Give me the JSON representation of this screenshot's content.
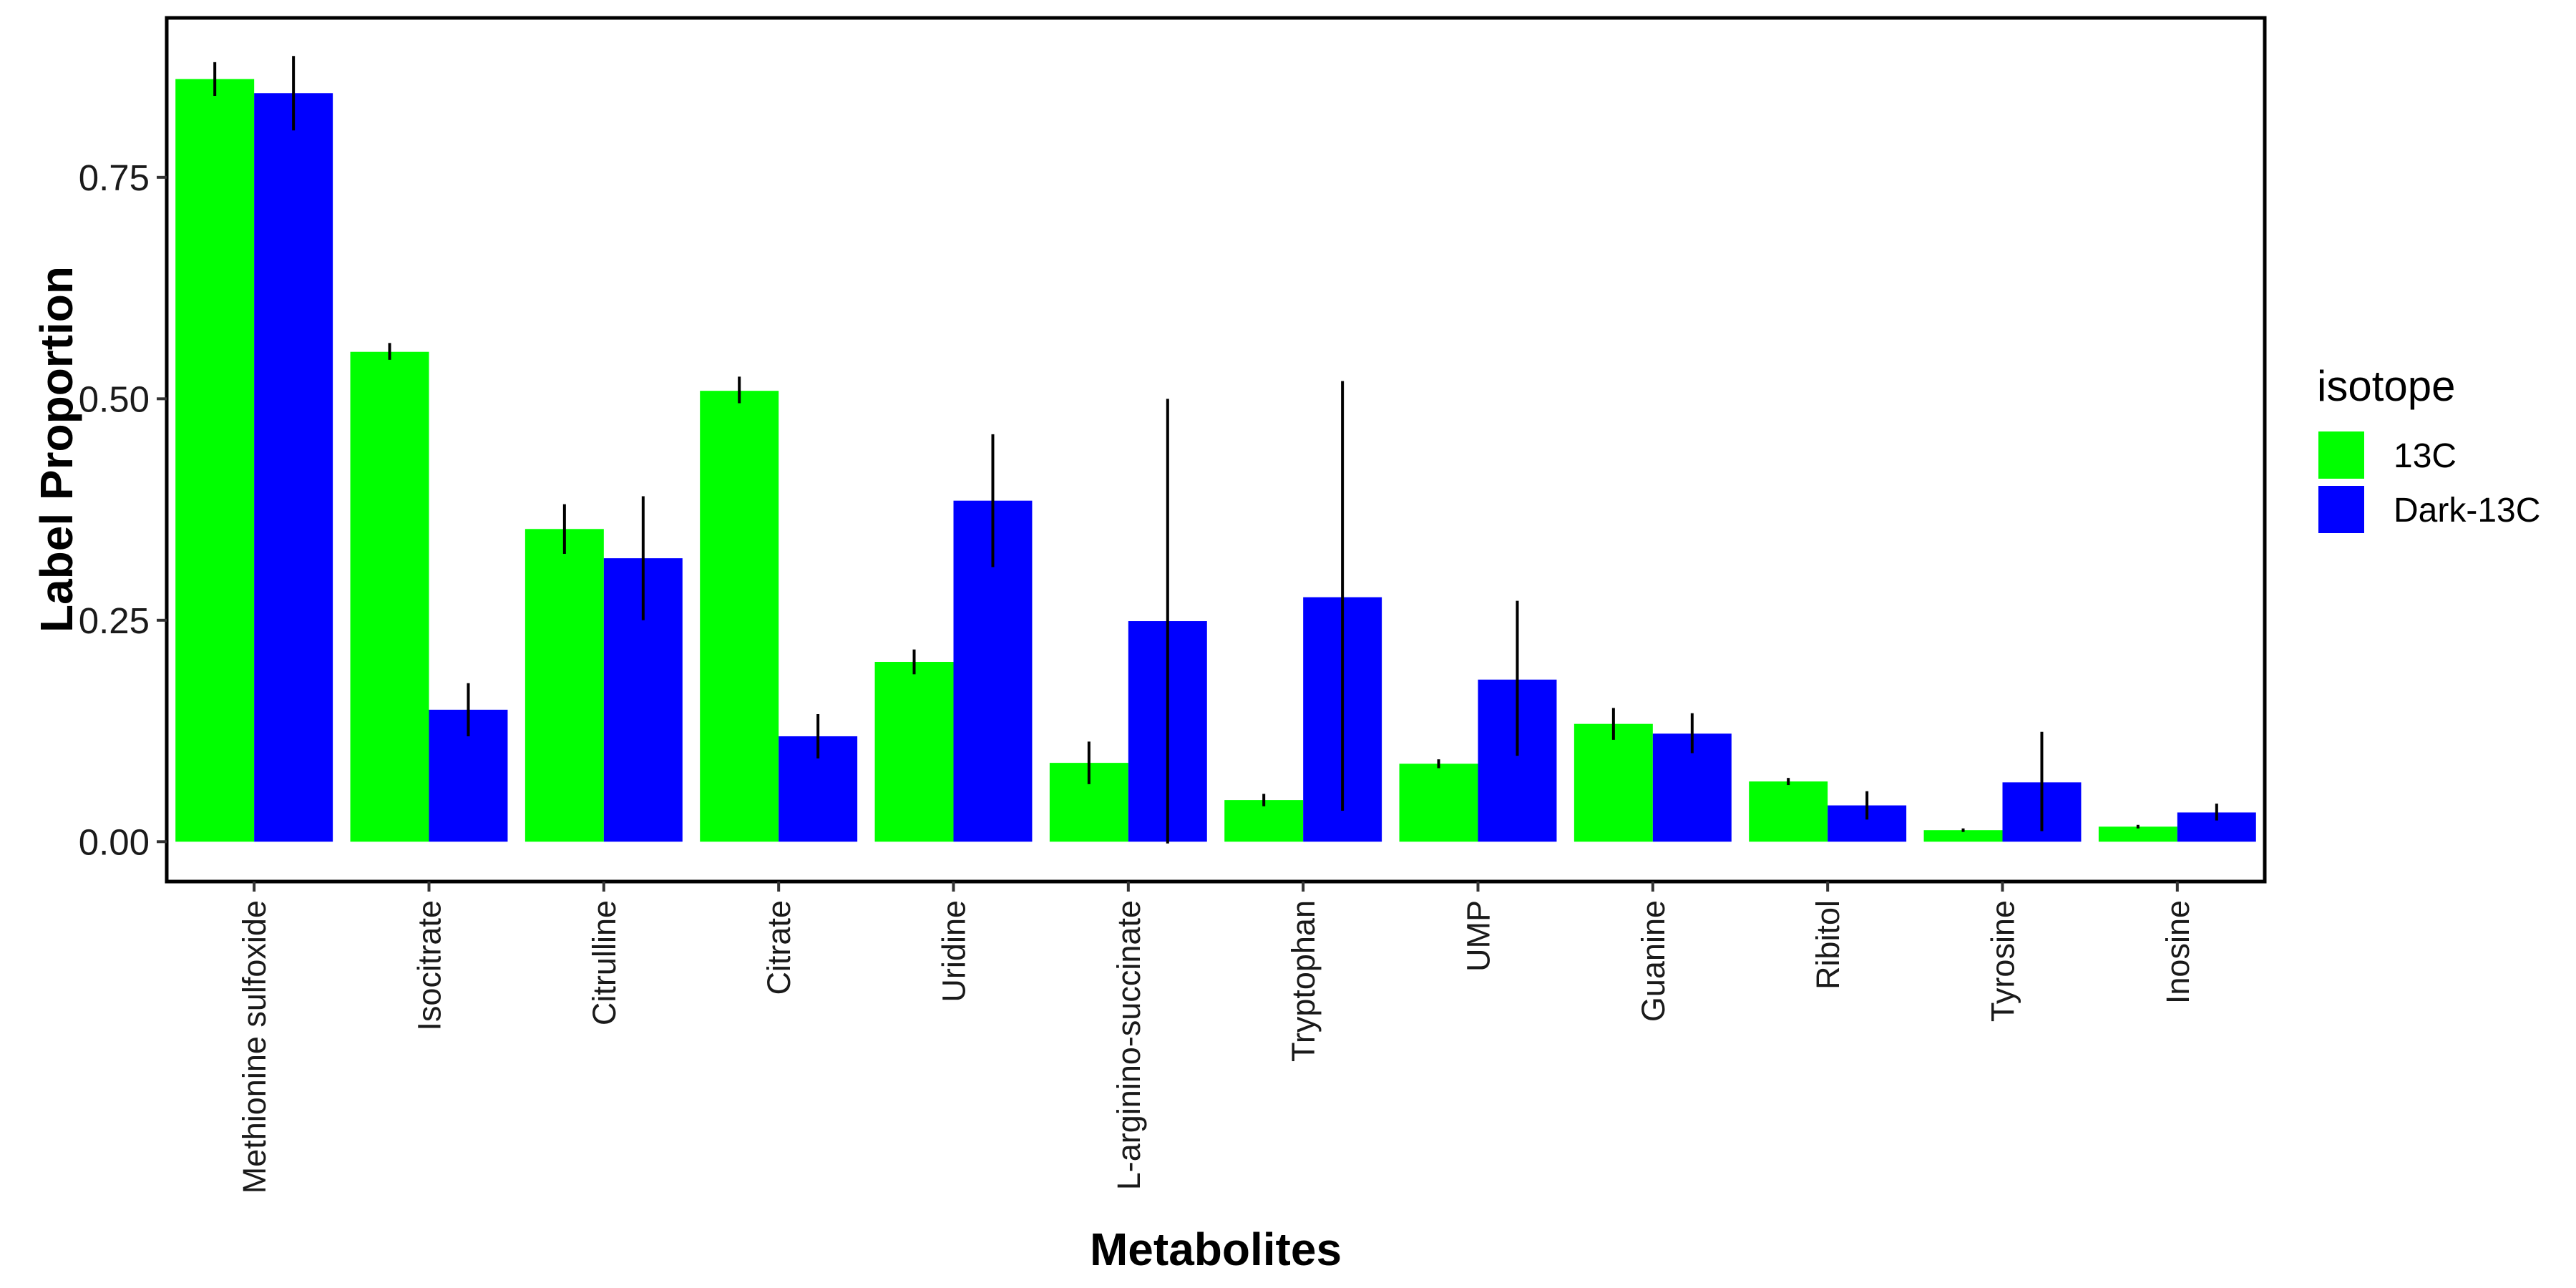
{
  "chart_data": {
    "type": "bar",
    "title": "",
    "xlabel": "Metabolites",
    "ylabel": "Label Proportion",
    "ylim": [
      -0.045,
      0.93
    ],
    "yticks": [
      0.0,
      0.25,
      0.5,
      0.75
    ],
    "ytick_labels": [
      "0.00",
      "0.25",
      "0.50",
      "0.75"
    ],
    "grid": false,
    "legend": {
      "title": "isotope",
      "position": "right"
    },
    "categories": [
      "Methionine sulfoxide",
      "Isocitrate",
      "Citrulline",
      "Citrate",
      "Uridine",
      "L-arginino-succinate",
      "Tryptophan",
      "UMP",
      "Guanine",
      "Ribitol",
      "Tyrosine",
      "Inosine"
    ],
    "series": [
      {
        "name": "13C",
        "color": "#00ff00",
        "values": [
          0.861,
          0.553,
          0.353,
          0.509,
          0.203,
          0.089,
          0.047,
          0.088,
          0.133,
          0.068,
          0.013,
          0.017
        ],
        "error_low": [
          0.842,
          0.544,
          0.325,
          0.495,
          0.189,
          0.065,
          0.04,
          0.083,
          0.115,
          0.064,
          0.011,
          0.015
        ],
        "error_high": [
          0.88,
          0.563,
          0.381,
          0.525,
          0.217,
          0.113,
          0.054,
          0.093,
          0.151,
          0.072,
          0.015,
          0.019
        ]
      },
      {
        "name": "Dark-13C",
        "color": "#0000ff",
        "values": [
          0.845,
          0.149,
          0.32,
          0.119,
          0.385,
          0.249,
          0.276,
          0.183,
          0.122,
          0.041,
          0.067,
          0.033
        ],
        "error_low": [
          0.803,
          0.119,
          0.25,
          0.094,
          0.31,
          -0.002,
          0.035,
          0.097,
          0.1,
          0.025,
          0.012,
          0.024
        ],
        "error_high": [
          0.887,
          0.179,
          0.39,
          0.144,
          0.46,
          0.5,
          0.52,
          0.272,
          0.145,
          0.057,
          0.124,
          0.043
        ]
      }
    ]
  }
}
